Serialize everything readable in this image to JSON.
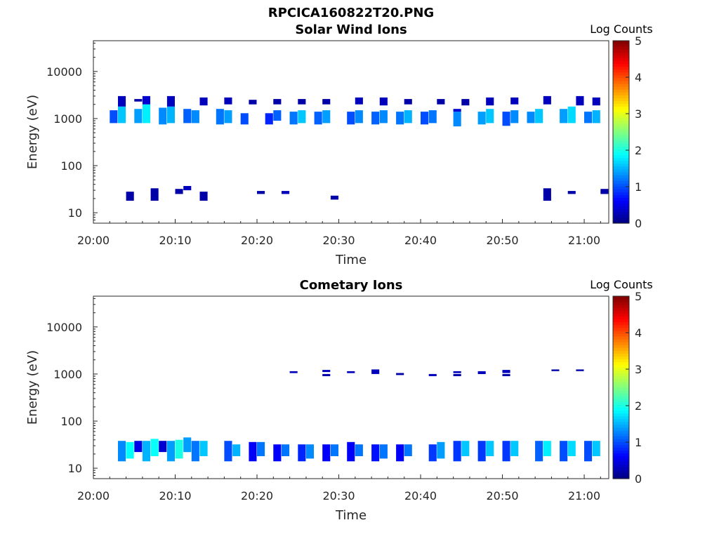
{
  "figure_title": "RPCICA160822T20.PNG",
  "colorbar": {
    "label": "Log Counts",
    "ticks": [
      "0",
      "1",
      "2",
      "3",
      "4",
      "5"
    ],
    "range": [
      0,
      5
    ],
    "colormap": "jet"
  },
  "chart_data": [
    {
      "type": "heatmap",
      "title": "Solar Wind Ions",
      "xlabel": "Time",
      "ylabel": "Energy (eV)",
      "y_scale": "log",
      "xlim": [
        "20:00",
        "21:03"
      ],
      "ylim": [
        6,
        45000
      ],
      "x_ticks": [
        "20:00",
        "20:10",
        "20:20",
        "20:30",
        "20:40",
        "20:50",
        "21:00"
      ],
      "y_ticks": [
        "10",
        "100",
        "1000",
        "10000"
      ],
      "cells": [
        [
          "20:02",
          800,
          1500,
          1.0
        ],
        [
          "20:03",
          800,
          1800,
          1.6
        ],
        [
          "20:03",
          1800,
          3000,
          0.3
        ],
        [
          "20:04",
          18,
          28,
          0.2
        ],
        [
          "20:05",
          800,
          1600,
          1.4
        ],
        [
          "20:06",
          800,
          2000,
          1.8
        ],
        [
          "20:06",
          2000,
          3000,
          0.4
        ],
        [
          "20:05",
          2300,
          2600,
          0.2
        ],
        [
          "20:07",
          18,
          33,
          0.2
        ],
        [
          "20:08",
          750,
          1700,
          1.3
        ],
        [
          "20:09",
          800,
          1800,
          1.5
        ],
        [
          "20:09",
          1800,
          3000,
          0.3
        ],
        [
          "20:10",
          25,
          32,
          0.2
        ],
        [
          "20:11",
          30,
          37,
          0.3
        ],
        [
          "20:11",
          800,
          1600,
          1.1
        ],
        [
          "20:12",
          800,
          1500,
          1.3
        ],
        [
          "20:13",
          1900,
          2800,
          0.3
        ],
        [
          "20:13",
          18,
          28,
          0.2
        ],
        [
          "20:15",
          750,
          1600,
          1.2
        ],
        [
          "20:16",
          800,
          1500,
          1.4
        ],
        [
          "20:16",
          2000,
          2800,
          0.3
        ],
        [
          "20:18",
          750,
          1300,
          1.0
        ],
        [
          "20:19",
          2000,
          2500,
          0.2
        ],
        [
          "20:20",
          25,
          29,
          0.2
        ],
        [
          "20:21",
          750,
          1300,
          0.8
        ],
        [
          "20:22",
          900,
          1500,
          1.1
        ],
        [
          "20:22",
          2000,
          2600,
          0.2
        ],
        [
          "20:23",
          25,
          29,
          0.3
        ],
        [
          "20:24",
          750,
          1400,
          1.2
        ],
        [
          "20:25",
          800,
          1500,
          1.6
        ],
        [
          "20:25",
          2000,
          2600,
          0.2
        ],
        [
          "20:27",
          750,
          1400,
          1.1
        ],
        [
          "20:28",
          800,
          1500,
          1.4
        ],
        [
          "20:28",
          2000,
          2600,
          0.2
        ],
        [
          "20:29",
          19,
          23,
          0.2
        ],
        [
          "20:31",
          750,
          1400,
          1.0
        ],
        [
          "20:32",
          800,
          1500,
          1.3
        ],
        [
          "20:32",
          2000,
          2800,
          0.3
        ],
        [
          "20:34",
          750,
          1400,
          1.1
        ],
        [
          "20:35",
          800,
          1500,
          1.3
        ],
        [
          "20:35",
          1900,
          2800,
          0.3
        ],
        [
          "20:37",
          750,
          1400,
          1.2
        ],
        [
          "20:38",
          800,
          1500,
          1.5
        ],
        [
          "20:38",
          2000,
          2600,
          0.2
        ],
        [
          "20:40",
          750,
          1400,
          1.0
        ],
        [
          "20:41",
          800,
          1500,
          1.2
        ],
        [
          "20:42",
          2000,
          2600,
          0.2
        ],
        [
          "20:44",
          680,
          1400,
          1.3
        ],
        [
          "20:44",
          1400,
          1600,
          0.4
        ],
        [
          "20:45",
          1900,
          2600,
          0.2
        ],
        [
          "20:47",
          750,
          1400,
          1.4
        ],
        [
          "20:48",
          800,
          1600,
          1.6
        ],
        [
          "20:48",
          1900,
          2800,
          0.3
        ],
        [
          "20:50",
          700,
          1400,
          1.0
        ],
        [
          "20:51",
          800,
          1500,
          1.3
        ],
        [
          "20:51",
          2000,
          2800,
          0.3
        ],
        [
          "20:53",
          800,
          1400,
          1.3
        ],
        [
          "20:54",
          800,
          1600,
          1.6
        ],
        [
          "20:55",
          2000,
          3000,
          0.3
        ],
        [
          "20:55",
          18,
          33,
          0.2
        ],
        [
          "20:57",
          800,
          1600,
          1.4
        ],
        [
          "20:58",
          800,
          1800,
          1.7
        ],
        [
          "20:59",
          1900,
          3000,
          0.3
        ],
        [
          "20:58",
          25,
          29,
          0.2
        ],
        [
          "21:00",
          800,
          1400,
          1.2
        ],
        [
          "21:01",
          800,
          1500,
          1.5
        ],
        [
          "21:01",
          1900,
          2800,
          0.3
        ],
        [
          "21:02",
          25,
          32,
          0.2
        ]
      ]
    },
    {
      "type": "heatmap",
      "title": "Cometary Ions",
      "xlabel": "Time",
      "ylabel": "Energy (eV)",
      "y_scale": "log",
      "xlim": [
        "20:00",
        "21:03"
      ],
      "ylim": [
        6,
        45000
      ],
      "x_ticks": [
        "20:00",
        "20:10",
        "20:20",
        "20:30",
        "20:40",
        "20:50",
        "21:00"
      ],
      "y_ticks": [
        "10",
        "100",
        "1000",
        "10000"
      ],
      "cells": [
        [
          "20:03",
          14,
          38,
          1.3
        ],
        [
          "20:04",
          16,
          36,
          1.9
        ],
        [
          "20:05",
          22,
          38,
          0.5
        ],
        [
          "20:06",
          14,
          38,
          1.5
        ],
        [
          "20:07",
          18,
          42,
          1.9
        ],
        [
          "20:08",
          22,
          38,
          0.4
        ],
        [
          "20:09",
          14,
          38,
          1.4
        ],
        [
          "20:10",
          16,
          40,
          2.0
        ],
        [
          "20:11",
          22,
          45,
          1.4
        ],
        [
          "20:12",
          14,
          38,
          1.2
        ],
        [
          "20:13",
          18,
          38,
          1.6
        ],
        [
          "20:16",
          14,
          38,
          1.0
        ],
        [
          "20:17",
          18,
          32,
          1.5
        ],
        [
          "20:19",
          14,
          36,
          0.6
        ],
        [
          "20:20",
          18,
          36,
          1.2
        ],
        [
          "20:22",
          14,
          32,
          0.6
        ],
        [
          "20:23",
          18,
          32,
          1.2
        ],
        [
          "20:25",
          14,
          32,
          0.8
        ],
        [
          "20:26",
          16,
          32,
          1.3
        ],
        [
          "20:24",
          1050,
          1150,
          0.3
        ],
        [
          "20:28",
          14,
          32,
          0.6
        ],
        [
          "20:29",
          18,
          32,
          1.2
        ],
        [
          "20:28",
          900,
          1000,
          0.2
        ],
        [
          "20:28",
          1100,
          1220,
          0.3
        ],
        [
          "20:31",
          14,
          36,
          0.6
        ],
        [
          "20:32",
          18,
          32,
          1.2
        ],
        [
          "20:31",
          1050,
          1150,
          0.3
        ],
        [
          "20:34",
          14,
          32,
          0.7
        ],
        [
          "20:35",
          16,
          32,
          1.2
        ],
        [
          "20:34",
          1000,
          1250,
          0.3
        ],
        [
          "20:37",
          14,
          32,
          0.6
        ],
        [
          "20:38",
          18,
          32,
          1.2
        ],
        [
          "20:37",
          950,
          1050,
          0.2
        ],
        [
          "20:41",
          14,
          32,
          0.9
        ],
        [
          "20:42",
          16,
          36,
          1.4
        ],
        [
          "20:41",
          900,
          1000,
          0.3
        ],
        [
          "20:44",
          14,
          38,
          0.9
        ],
        [
          "20:45",
          18,
          38,
          1.6
        ],
        [
          "20:44",
          900,
          1000,
          0.2
        ],
        [
          "20:44",
          1050,
          1150,
          0.3
        ],
        [
          "20:47",
          14,
          38,
          0.9
        ],
        [
          "20:48",
          18,
          38,
          1.6
        ],
        [
          "20:47",
          1000,
          1150,
          0.3
        ],
        [
          "20:50",
          14,
          38,
          0.9
        ],
        [
          "20:51",
          18,
          38,
          1.6
        ],
        [
          "20:50",
          900,
          1000,
          0.2
        ],
        [
          "20:50",
          1050,
          1220,
          0.3
        ],
        [
          "20:54",
          14,
          38,
          1.1
        ],
        [
          "20:55",
          18,
          38,
          1.8
        ],
        [
          "20:56",
          1150,
          1250,
          0.2
        ],
        [
          "20:57",
          14,
          38,
          1.0
        ],
        [
          "20:58",
          18,
          38,
          1.7
        ],
        [
          "20:59",
          1150,
          1250,
          0.2
        ],
        [
          "21:00",
          14,
          38,
          1.0
        ],
        [
          "21:01",
          18,
          38,
          1.6
        ]
      ]
    }
  ]
}
